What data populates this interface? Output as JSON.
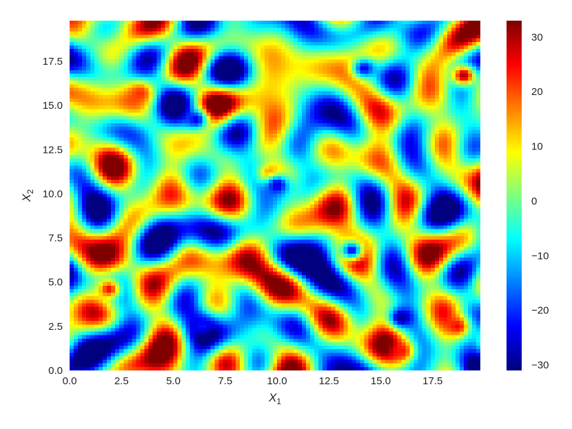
{
  "chart_data": {
    "type": "heatmap",
    "title": "",
    "xlabel": "X",
    "xlabel_sub": "1",
    "ylabel": "X",
    "ylabel_sub": "2",
    "xlim": [
      0,
      19.8
    ],
    "ylim": [
      0,
      19.8
    ],
    "grid_resolution": 0.2,
    "x_ticks": [
      0.0,
      2.5,
      5.0,
      7.5,
      10.0,
      12.5,
      15.0,
      17.5
    ],
    "x_tick_labels": [
      "0.0",
      "2.5",
      "5.0",
      "7.5",
      "10.0",
      "12.5",
      "15.0",
      "17.5"
    ],
    "y_ticks": [
      0.0,
      2.5,
      5.0,
      7.5,
      10.0,
      12.5,
      15.0,
      17.5
    ],
    "y_tick_labels": [
      "0.0",
      "2.5",
      "5.0",
      "7.5",
      "10.0",
      "12.5",
      "15.0",
      "17.5"
    ],
    "colormap": "jet",
    "value_range": [
      -31,
      33
    ],
    "colorbar": {
      "ticks": [
        30,
        20,
        10,
        0,
        -10,
        -20,
        -30
      ],
      "tick_labels": [
        "30",
        "20",
        "10",
        "0",
        "−10",
        "−20",
        "−30"
      ]
    },
    "field_description_values": {
      "notable_highs": [
        [
          9.6,
          11.0,
          22
        ],
        [
          18.6,
          2.4,
          25
        ],
        [
          18.9,
          16.6,
          32
        ],
        [
          3.3,
          15.6,
          22
        ],
        [
          1.8,
          4.5,
          25
        ],
        [
          15.9,
          1.0,
          24
        ]
      ],
      "notable_lows": [
        [
          6.0,
          14.1,
          -24
        ],
        [
          9.9,
          10.4,
          -26
        ],
        [
          13.5,
          6.7,
          -24
        ],
        [
          15.9,
          2.9,
          -30
        ],
        [
          14.1,
          17.0,
          -24
        ],
        [
          6.3,
          2.4,
          -22
        ]
      ]
    }
  }
}
